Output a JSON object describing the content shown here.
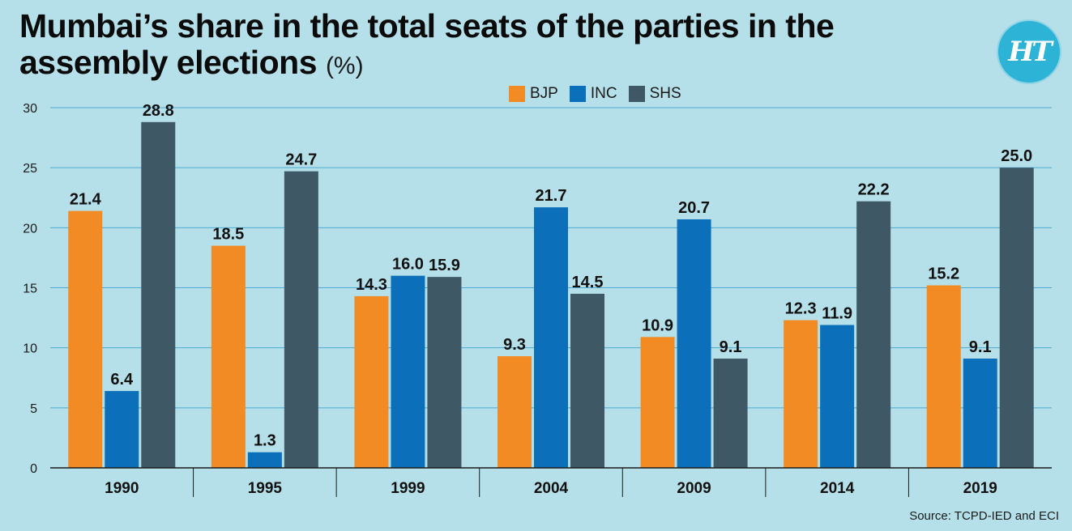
{
  "title": "Mumbai’s share in the total seats of the parties in the assembly elections",
  "title_unit": "(%)",
  "logo_text": "HT",
  "source": "Source: TCPD-IED and ECI",
  "legend": [
    {
      "label": "BJP",
      "color": "#f28b24"
    },
    {
      "label": "INC",
      "color": "#0b6fba"
    },
    {
      "label": "SHS",
      "color": "#3f5866"
    }
  ],
  "chart_data": {
    "type": "bar",
    "title": "Mumbai’s share in the total seats of the parties in the assembly elections (%)",
    "categories": [
      "1990",
      "1995",
      "1999",
      "2004",
      "2009",
      "2014",
      "2019"
    ],
    "series": [
      {
        "name": "BJP",
        "color": "#f28b24",
        "values": [
          21.4,
          18.5,
          14.3,
          9.3,
          10.9,
          12.3,
          15.2
        ]
      },
      {
        "name": "INC",
        "color": "#0b6fba",
        "values": [
          6.4,
          1.3,
          16.0,
          21.7,
          20.7,
          11.9,
          9.1
        ]
      },
      {
        "name": "SHS",
        "color": "#3f5866",
        "values": [
          28.8,
          24.7,
          15.9,
          14.5,
          9.1,
          22.2,
          25.0
        ]
      }
    ],
    "yticks": [
      0,
      5,
      10,
      15,
      20,
      25,
      30
    ],
    "ylim": [
      0,
      30
    ],
    "grid": true,
    "legend_position": "top-center",
    "data_labels": true
  }
}
